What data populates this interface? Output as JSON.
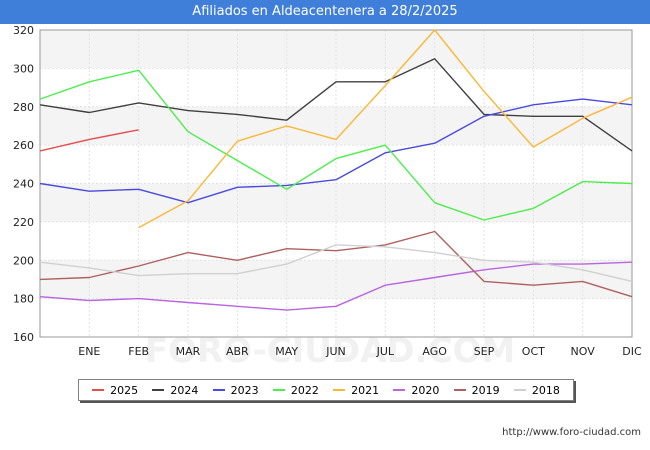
{
  "chart_data": {
    "type": "line",
    "title": "Afiliados en Aldeacentenera a 28/2/2025",
    "xlabel": "",
    "ylabel": "",
    "x": [
      "",
      "ENE",
      "FEB",
      "MAR",
      "ABR",
      "MAY",
      "JUN",
      "JUL",
      "AGO",
      "SEP",
      "OCT",
      "NOV",
      "DIC"
    ],
    "ylim": [
      160,
      320
    ],
    "yticks": [
      160,
      180,
      200,
      220,
      240,
      260,
      280,
      300,
      320
    ],
    "series": [
      {
        "name": "2025",
        "color": "#e84c4c",
        "values": [
          257,
          263,
          268,
          null,
          null,
          null,
          null,
          null,
          null,
          null,
          null,
          null,
          null
        ]
      },
      {
        "name": "2024",
        "color": "#404040",
        "values": [
          281,
          277,
          282,
          278,
          276,
          273,
          293,
          293,
          305,
          276,
          275,
          275,
          257
        ]
      },
      {
        "name": "2023",
        "color": "#4a4ae0",
        "values": [
          240,
          236,
          237,
          230,
          238,
          239,
          242,
          256,
          261,
          275,
          281,
          284,
          281
        ]
      },
      {
        "name": "2022",
        "color": "#4cee4c",
        "values": [
          284,
          293,
          299,
          267,
          252,
          237,
          253,
          260,
          230,
          221,
          227,
          241,
          240
        ]
      },
      {
        "name": "2021",
        "color": "#fbb737",
        "values": [
          null,
          null,
          217,
          231,
          262,
          270,
          263,
          291,
          320,
          288,
          259,
          274,
          285
        ]
      },
      {
        "name": "2020",
        "color": "#b964e0",
        "values": [
          181,
          179,
          180,
          178,
          176,
          174,
          176,
          187,
          191,
          195,
          198,
          198,
          199
        ]
      },
      {
        "name": "2019",
        "color": "#b06060",
        "values": [
          190,
          191,
          197,
          204,
          200,
          206,
          205,
          208,
          215,
          189,
          187,
          189,
          181
        ]
      },
      {
        "name": "2018",
        "color": "#d0d0d0",
        "values": [
          199,
          196,
          192,
          193,
          193,
          198,
          208,
          207,
          204,
          200,
          199,
          195,
          189
        ]
      }
    ],
    "legend_position": "bottom",
    "watermark": "FORO-CIUDAD.COM"
  },
  "source": "http://www.foro-ciudad.com"
}
